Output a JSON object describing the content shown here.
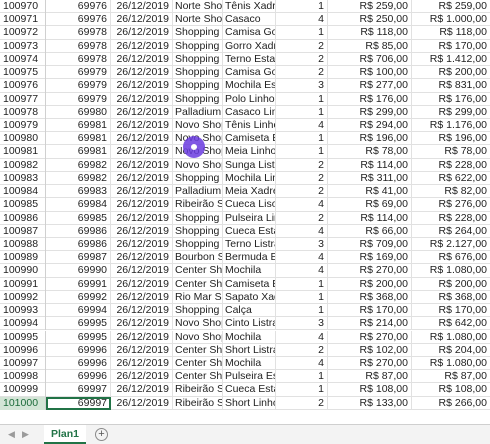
{
  "sheet": {
    "rows": [
      [
        "100970",
        "69976",
        "26/12/2019",
        "Norte Shop",
        "Tênis Xadrez",
        "1",
        "R$ 259,00",
        "R$ 259,00"
      ],
      [
        "100971",
        "69976",
        "26/12/2019",
        "Norte Shop",
        "Casaco",
        "4",
        "R$ 250,00",
        "R$ 1.000,00"
      ],
      [
        "100972",
        "69978",
        "26/12/2019",
        "Shopping II",
        "Camisa Gola",
        "1",
        "R$ 118,00",
        "R$ 118,00"
      ],
      [
        "100973",
        "69978",
        "26/12/2019",
        "Shopping C",
        "Gorro Xadrez",
        "2",
        "R$ 85,00",
        "R$ 170,00"
      ],
      [
        "100974",
        "69978",
        "26/12/2019",
        "Shopping C",
        "Terno Estam",
        "2",
        "R$ 706,00",
        "R$ 1.412,00"
      ],
      [
        "100975",
        "69979",
        "26/12/2019",
        "Shopping U",
        "Camisa Gola",
        "2",
        "R$ 100,00",
        "R$ 200,00"
      ],
      [
        "100976",
        "69979",
        "26/12/2019",
        "Shopping U",
        "Mochila Esta",
        "3",
        "R$ 277,00",
        "R$ 831,00"
      ],
      [
        "100977",
        "69979",
        "26/12/2019",
        "Shopping U",
        "Polo Linho",
        "1",
        "R$ 176,00",
        "R$ 176,00"
      ],
      [
        "100978",
        "69980",
        "26/12/2019",
        "Palladium S",
        "Casaco Linho",
        "1",
        "R$ 299,00",
        "R$ 299,00"
      ],
      [
        "100979",
        "69981",
        "26/12/2019",
        "Novo Shop",
        "Tênis Linho",
        "4",
        "R$ 294,00",
        "R$ 1.176,00"
      ],
      [
        "100980",
        "69981",
        "26/12/2019",
        "Novo Shop",
        "Camiseta Es",
        "1",
        "R$ 196,00",
        "R$ 196,00"
      ],
      [
        "100981",
        "69981",
        "26/12/2019",
        "Novo Shop",
        "Meia Linho",
        "1",
        "R$ 78,00",
        "R$ 78,00"
      ],
      [
        "100982",
        "69982",
        "26/12/2019",
        "Novo Shop",
        "Sunga Listra",
        "2",
        "R$ 114,00",
        "R$ 228,00"
      ],
      [
        "100983",
        "69982",
        "26/12/2019",
        "Shopping R",
        "Mochila Linh",
        "2",
        "R$ 311,00",
        "R$ 622,00"
      ],
      [
        "100984",
        "69983",
        "26/12/2019",
        "Palladium S",
        "Meia Xadrez",
        "2",
        "R$ 41,00",
        "R$ 82,00"
      ],
      [
        "100985",
        "69984",
        "26/12/2019",
        "Ribeirão Sh",
        "Cueca Liso",
        "4",
        "R$ 69,00",
        "R$ 276,00"
      ],
      [
        "100986",
        "69985",
        "26/12/2019",
        "Shopping V",
        "Pulseira Linh",
        "2",
        "R$ 114,00",
        "R$ 228,00"
      ],
      [
        "100987",
        "69986",
        "26/12/2019",
        "Shopping E",
        "Cueca Estam",
        "4",
        "R$ 66,00",
        "R$ 264,00"
      ],
      [
        "100988",
        "69986",
        "26/12/2019",
        "Shopping E",
        "Terno Listrad",
        "3",
        "R$ 709,00",
        "R$ 2.127,00"
      ],
      [
        "100989",
        "69987",
        "26/12/2019",
        "Bourbon Sh",
        "Bermuda Est",
        "4",
        "R$ 169,00",
        "R$ 676,00"
      ],
      [
        "100990",
        "69990",
        "26/12/2019",
        "Center Sho",
        "Mochila",
        "4",
        "R$ 270,00",
        "R$ 1.080,00"
      ],
      [
        "100991",
        "69991",
        "26/12/2019",
        "Center Sho",
        "Camiseta Es",
        "1",
        "R$ 200,00",
        "R$ 200,00"
      ],
      [
        "100992",
        "69992",
        "26/12/2019",
        "Rio Mar Sh",
        "Sapato Xadr",
        "1",
        "R$ 368,00",
        "R$ 368,00"
      ],
      [
        "100993",
        "69994",
        "26/12/2019",
        "Shopping N",
        "Calça",
        "1",
        "R$ 170,00",
        "R$ 170,00"
      ],
      [
        "100994",
        "69995",
        "26/12/2019",
        "Novo Shop",
        "Cinto Listrad",
        "3",
        "R$ 214,00",
        "R$ 642,00"
      ],
      [
        "100995",
        "69995",
        "26/12/2019",
        "Novo Shop",
        "Mochila",
        "4",
        "R$ 270,00",
        "R$ 1.080,00"
      ],
      [
        "100996",
        "69996",
        "26/12/2019",
        "Center Sho",
        "Short Listrad",
        "2",
        "R$ 102,00",
        "R$ 204,00"
      ],
      [
        "100997",
        "69996",
        "26/12/2019",
        "Center Sho",
        "Mochila",
        "4",
        "R$ 270,00",
        "R$ 1.080,00"
      ],
      [
        "100998",
        "69996",
        "26/12/2019",
        "Center Sho",
        "Pulseira Esta",
        "1",
        "R$ 87,00",
        "R$ 87,00"
      ],
      [
        "100999",
        "69997",
        "26/12/2019",
        "Ribeirão Sh",
        "Cueca Estam",
        "1",
        "R$ 108,00",
        "R$ 108,00"
      ],
      [
        "101000",
        "69997",
        "26/12/2019",
        "Ribeirão Sh",
        "Short Linho",
        "2",
        "R$ 133,00",
        "R$ 266,00"
      ]
    ]
  },
  "tabs": {
    "sheet1_label": "Plan1",
    "add_label": "+"
  },
  "colors": {
    "excel_green": "#217346",
    "gridline": "#e1e1e1",
    "cursor": "#6a3ce0"
  }
}
